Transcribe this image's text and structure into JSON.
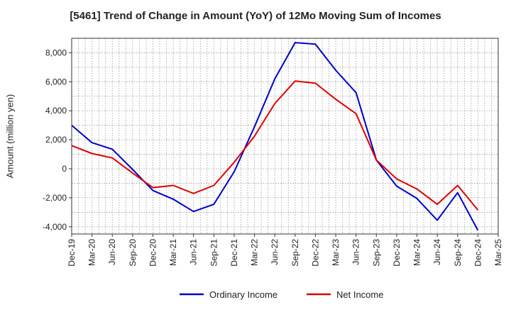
{
  "chart_data": {
    "type": "line",
    "title": "[5461]  Trend of Change in Amount (YoY) of 12Mo Moving Sum of Incomes",
    "xlabel": "",
    "ylabel": "Amount (million yen)",
    "ylim": [
      -4500,
      9000
    ],
    "yticks": [
      -4000,
      -2000,
      0,
      2000,
      4000,
      6000,
      8000
    ],
    "ytick_labels": [
      "-4,000",
      "-2,000",
      "0",
      "2,000",
      "4,000",
      "6,000",
      "8,000"
    ],
    "categories": [
      "Dec-19",
      "Mar-20",
      "Jun-20",
      "Sep-20",
      "Dec-20",
      "Mar-21",
      "Jun-21",
      "Sep-21",
      "Dec-21",
      "Mar-22",
      "Jun-22",
      "Sep-22",
      "Dec-22",
      "Mar-23",
      "Jun-23",
      "Sep-23",
      "Dec-23",
      "Mar-24",
      "Jun-24",
      "Sep-24",
      "Dec-24",
      "Mar-25"
    ],
    "grid": true,
    "legend_position": "bottom",
    "series": [
      {
        "name": "Ordinary Income",
        "color": "#0000cc",
        "values": [
          3000,
          1800,
          1350,
          -50,
          -1500,
          -2100,
          -2950,
          -2450,
          -200,
          2900,
          6200,
          8700,
          8600,
          6800,
          5250,
          600,
          -1200,
          -2050,
          -3550,
          -1650,
          -4250,
          null
        ]
      },
      {
        "name": "Net Income",
        "color": "#dd0000",
        "values": [
          1600,
          1050,
          750,
          -300,
          -1300,
          -1150,
          -1700,
          -1150,
          450,
          2250,
          4500,
          6050,
          5900,
          4800,
          3800,
          600,
          -700,
          -1400,
          -2450,
          -1150,
          -2850,
          null
        ]
      }
    ]
  }
}
